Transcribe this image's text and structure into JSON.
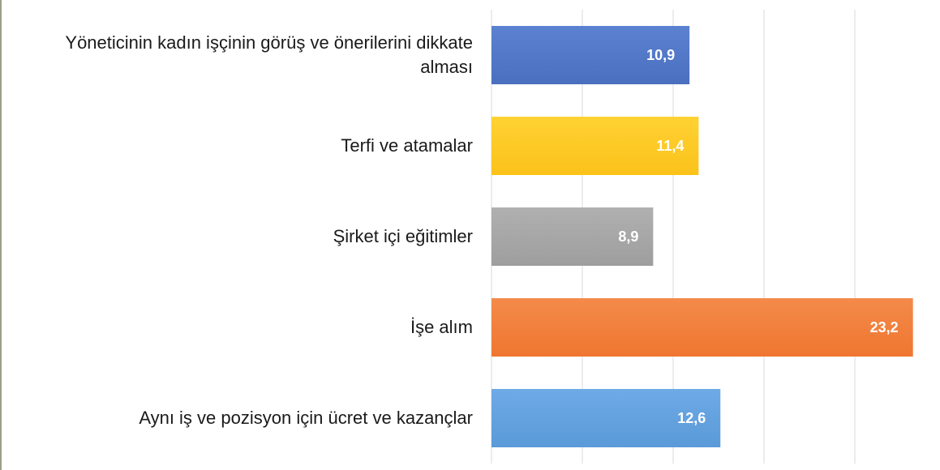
{
  "chart_data": {
    "type": "bar",
    "orientation": "horizontal",
    "categories": [
      "Yöneticinin kadın işçinin görüş ve önerilerini dikkate alması",
      "Terfi ve atamalar",
      "Şirket içi eğitimler",
      "İşe alım",
      "Aynı iş ve pozisyon için ücret ve kazançlar"
    ],
    "category_lines": [
      [
        "Yöneticinin kadın işçinin görüş ve önerilerini dikkate",
        "alması"
      ],
      [
        "Terfi ve atamalar"
      ],
      [
        "Şirket içi eğitimler"
      ],
      [
        "İşe alım"
      ],
      [
        "Aynı iş ve pozisyon için ücret ve kazançlar"
      ]
    ],
    "values": [
      10.9,
      11.4,
      8.9,
      23.2,
      12.6
    ],
    "value_labels": [
      "10,9",
      "11,4",
      "8,9",
      "23,2",
      "12,6"
    ],
    "colors": [
      "#4a6fbf",
      "#fbc21a",
      "#9e9e9e",
      "#ef7630",
      "#5a9ad8"
    ],
    "gradient_light": [
      "#5b82d0",
      "#ffd233",
      "#b0b0b0",
      "#f48a4a",
      "#6eaae6"
    ],
    "xlim": [
      0,
      25
    ],
    "grid": true,
    "gridline_values": [
      0,
      5,
      10,
      15,
      20,
      25
    ],
    "title": "",
    "xlabel": "",
    "ylabel": ""
  }
}
